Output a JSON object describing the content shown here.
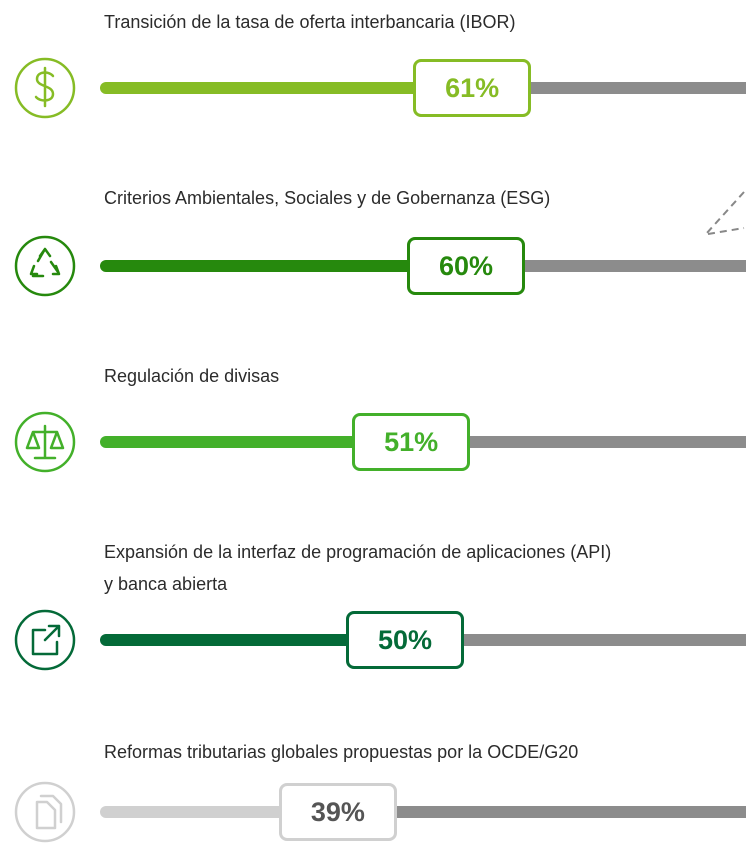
{
  "chart_data": {
    "type": "progress",
    "categories": [
      "Transición de la tasa de oferta interbancaria (IBOR)",
      "Criterios Ambientales, Sociales y de Gobernanza (ESG)",
      "Regulación de divisas",
      "Expansión de la interfaz de programación de aplicaciones (API) y banca abierta",
      "Reformas tributarias globales propuestas por la OCDE/G20"
    ],
    "values": [
      61,
      60,
      51,
      50,
      39
    ],
    "value_labels": [
      "61%",
      "60%",
      "51%",
      "50%",
      "39%"
    ],
    "colors": [
      "#86bc25",
      "#26890d",
      "#43b02a",
      "#046a38",
      "#d0d0d0"
    ],
    "remainder_color": "#8c8c8c"
  }
}
